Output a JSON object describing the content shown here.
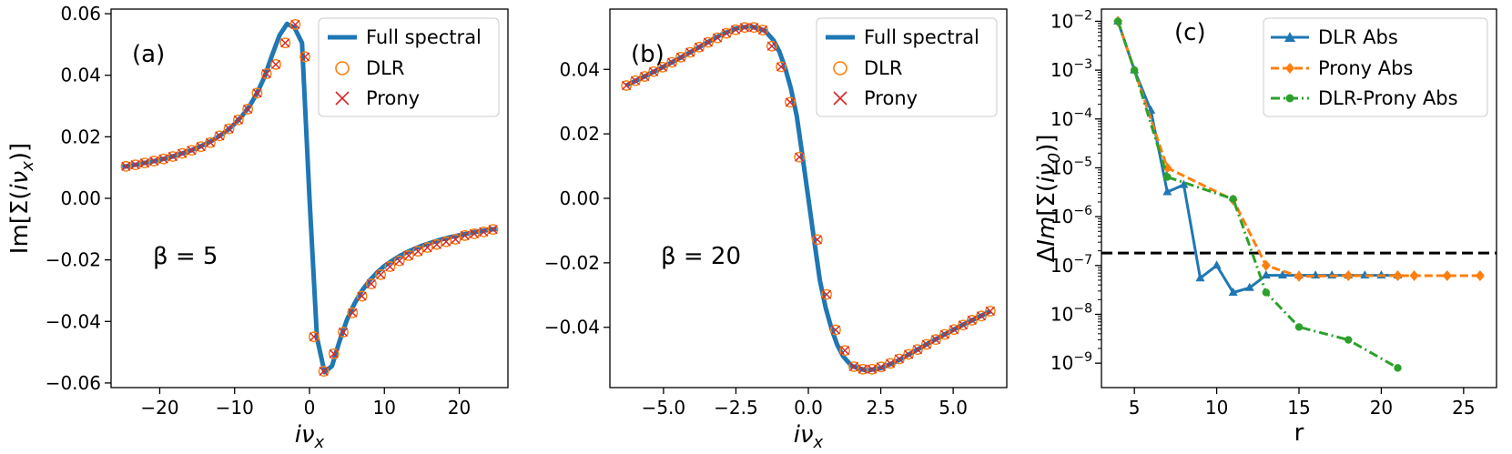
{
  "chart_data": [
    {
      "type": "line",
      "panel": "(a)",
      "annotation": "β = 5",
      "xlabel": "iν_x",
      "ylabel": "Im[Σ(iν_x)]",
      "xlim": [
        -26.5,
        26.5
      ],
      "ylim": [
        -0.0615,
        0.0615
      ],
      "xticks": [
        -20,
        -10,
        0,
        10,
        20
      ],
      "xtick_labels": [
        "−20",
        "−10",
        "0",
        "10",
        "20"
      ],
      "yticks": [
        -0.06,
        -0.04,
        -0.02,
        0.0,
        0.02,
        0.04,
        0.06
      ],
      "ytick_labels": [
        "−0.06",
        "−0.04",
        "−0.02",
        "0.00",
        "0.02",
        "0.04",
        "0.06"
      ],
      "legend_position": "top-right",
      "series": [
        {
          "name": "Full spectral",
          "style": "line",
          "color": "#1f77b4",
          "x": [
            -25,
            -24,
            -23,
            -22,
            -21,
            -20,
            -19,
            -18,
            -17,
            -16,
            -15,
            -14,
            -13,
            -12,
            -11,
            -10,
            -9,
            -8,
            -7,
            -6,
            -5,
            -4,
            -3,
            -2,
            -1,
            0,
            1,
            2,
            3,
            4,
            5,
            6,
            7,
            8,
            9,
            10,
            11,
            12,
            13,
            14,
            15,
            16,
            17,
            18,
            19,
            20,
            21,
            22,
            23,
            24,
            25
          ],
          "y": [
            0.0102,
            0.0106,
            0.011,
            0.0115,
            0.012,
            0.0125,
            0.0131,
            0.0138,
            0.0146,
            0.0154,
            0.0164,
            0.0175,
            0.0188,
            0.0203,
            0.022,
            0.0242,
            0.0268,
            0.03,
            0.0342,
            0.0395,
            0.0465,
            0.053,
            0.0567,
            0.0555,
            0.0505,
            0.0,
            -0.0453,
            -0.0565,
            -0.0545,
            -0.0465,
            -0.0395,
            -0.0342,
            -0.03,
            -0.0268,
            -0.0242,
            -0.022,
            -0.0203,
            -0.0188,
            -0.0175,
            -0.0164,
            -0.0154,
            -0.0146,
            -0.0138,
            -0.0131,
            -0.0125,
            -0.012,
            -0.0115,
            -0.011,
            -0.0106,
            -0.0102,
            -0.0099
          ]
        },
        {
          "name": "DLR",
          "style": "circle",
          "color": "#ff7f0e",
          "x": [
            -24.5,
            -23.25,
            -22.0,
            -20.75,
            -19.5,
            -18.25,
            -17.0,
            -15.75,
            -14.5,
            -13.25,
            -12.0,
            -10.75,
            -9.5,
            -8.25,
            -7.0,
            -5.75,
            -4.5,
            -3.25,
            -1.9,
            -0.6,
            0.6,
            1.9,
            3.25,
            4.5,
            5.75,
            7.0,
            8.25,
            9.5,
            10.75,
            12.0,
            13.25,
            14.5,
            15.75,
            17.0,
            18.25,
            19.5,
            20.75,
            22.0,
            23.25,
            24.5
          ],
          "y": [
            0.0104,
            0.0109,
            0.0115,
            0.0121,
            0.0128,
            0.0136,
            0.0146,
            0.0156,
            0.0168,
            0.0181,
            0.0203,
            0.0226,
            0.0255,
            0.029,
            0.0342,
            0.0405,
            0.0435,
            0.0505,
            0.0565,
            0.046,
            -0.045,
            -0.0562,
            -0.0505,
            -0.0435,
            -0.0372,
            -0.0318,
            -0.0278,
            -0.0248,
            -0.0222,
            -0.0203,
            -0.0186,
            -0.0172,
            -0.016,
            -0.015,
            -0.0141,
            -0.0133,
            -0.0121,
            -0.0115,
            -0.0109,
            -0.0101
          ]
        },
        {
          "name": "Prony",
          "style": "x",
          "color": "#d62728",
          "x": [
            -24.5,
            -23.25,
            -22.0,
            -20.75,
            -19.5,
            -18.25,
            -17.0,
            -15.75,
            -14.5,
            -13.25,
            -12.0,
            -10.75,
            -9.5,
            -8.25,
            -7.0,
            -5.75,
            -4.5,
            -3.25,
            -1.9,
            -0.6,
            0.6,
            1.9,
            3.25,
            4.5,
            5.75,
            7.0,
            8.25,
            9.5,
            10.75,
            12.0,
            13.25,
            14.5,
            15.75,
            17.0,
            18.25,
            19.5,
            20.75,
            22.0,
            23.25,
            24.5
          ],
          "y": [
            0.0104,
            0.0109,
            0.0115,
            0.0121,
            0.0128,
            0.0136,
            0.0146,
            0.0156,
            0.0168,
            0.0181,
            0.0203,
            0.0226,
            0.0255,
            0.029,
            0.0342,
            0.0405,
            0.0435,
            0.0505,
            0.0565,
            0.046,
            -0.045,
            -0.0562,
            -0.0505,
            -0.0435,
            -0.0372,
            -0.0318,
            -0.0278,
            -0.0248,
            -0.0222,
            -0.0203,
            -0.0186,
            -0.0172,
            -0.016,
            -0.015,
            -0.0141,
            -0.0133,
            -0.0121,
            -0.0115,
            -0.0109,
            -0.0101
          ]
        }
      ]
    },
    {
      "type": "line",
      "panel": "(b)",
      "annotation": "β = 20",
      "xlabel": "iν_x",
      "ylabel": "",
      "xlim": [
        -6.85,
        6.85
      ],
      "ylim": [
        -0.0587,
        0.0587
      ],
      "xticks": [
        -5,
        -2.5,
        0,
        2.5,
        5
      ],
      "xtick_labels": [
        "−5.0",
        "−2.5",
        "0.0",
        "2.5",
        "5.0"
      ],
      "yticks": [
        -0.04,
        -0.02,
        0.0,
        0.02,
        0.04
      ],
      "ytick_labels": [
        "−0.04",
        "−0.02",
        "0.00",
        "0.02",
        "0.04"
      ],
      "legend_position": "top-right",
      "series": [
        {
          "name": "Full spectral",
          "style": "line",
          "color": "#1f77b4",
          "x": [
            -6.28,
            -6.0,
            -5.5,
            -5.0,
            -4.5,
            -4.0,
            -3.5,
            -3.0,
            -2.5,
            -2.0,
            -1.5,
            -1.2,
            -1.0,
            -0.8,
            -0.6,
            -0.4,
            -0.2,
            0.0,
            0.2,
            0.4,
            0.6,
            0.8,
            1.0,
            1.2,
            1.5,
            2.0,
            2.5,
            3.0,
            3.5,
            4.0,
            4.5,
            5.0,
            5.5,
            6.0,
            6.28
          ],
          "y": [
            0.035,
            0.0363,
            0.0385,
            0.0408,
            0.0432,
            0.0457,
            0.0483,
            0.0508,
            0.0527,
            0.0534,
            0.052,
            0.049,
            0.0455,
            0.0405,
            0.034,
            0.0255,
            0.013,
            0.0,
            -0.013,
            -0.0255,
            -0.034,
            -0.0405,
            -0.0455,
            -0.049,
            -0.052,
            -0.0534,
            -0.0527,
            -0.0508,
            -0.0483,
            -0.0457,
            -0.0432,
            -0.0408,
            -0.0385,
            -0.0363,
            -0.035
          ]
        },
        {
          "name": "DLR",
          "style": "circle",
          "color": "#ff7f0e",
          "x": [
            -6.28,
            -5.97,
            -5.65,
            -5.34,
            -5.03,
            -4.71,
            -4.4,
            -4.08,
            -3.77,
            -3.46,
            -3.14,
            -2.83,
            -2.51,
            -2.2,
            -1.88,
            -1.57,
            -1.26,
            -0.94,
            -0.63,
            -0.31,
            0.31,
            0.63,
            0.94,
            1.26,
            1.57,
            1.88,
            2.2,
            2.51,
            2.83,
            3.14,
            3.46,
            3.77,
            4.08,
            4.4,
            4.71,
            5.03,
            5.34,
            5.65,
            5.97,
            6.28
          ],
          "y": [
            0.035,
            0.0365,
            0.0378,
            0.0393,
            0.0407,
            0.0422,
            0.0438,
            0.0453,
            0.0469,
            0.0484,
            0.0498,
            0.0512,
            0.0523,
            0.053,
            0.053,
            0.0522,
            0.0472,
            0.0408,
            0.0298,
            0.0128,
            -0.0128,
            -0.0298,
            -0.0408,
            -0.0472,
            -0.0522,
            -0.053,
            -0.053,
            -0.0523,
            -0.0512,
            -0.0498,
            -0.0484,
            -0.0469,
            -0.0453,
            -0.0438,
            -0.0422,
            -0.0407,
            -0.0393,
            -0.0378,
            -0.0365,
            -0.035
          ]
        },
        {
          "name": "Prony",
          "style": "x",
          "color": "#d62728",
          "x": [
            -6.28,
            -5.97,
            -5.65,
            -5.34,
            -5.03,
            -4.71,
            -4.4,
            -4.08,
            -3.77,
            -3.46,
            -3.14,
            -2.83,
            -2.51,
            -2.2,
            -1.88,
            -1.57,
            -1.26,
            -0.94,
            -0.63,
            -0.31,
            0.31,
            0.63,
            0.94,
            1.26,
            1.57,
            1.88,
            2.2,
            2.51,
            2.83,
            3.14,
            3.46,
            3.77,
            4.08,
            4.4,
            4.71,
            5.03,
            5.34,
            5.65,
            5.97,
            6.28
          ],
          "y": [
            0.035,
            0.0365,
            0.0378,
            0.0393,
            0.0407,
            0.0422,
            0.0438,
            0.0453,
            0.0469,
            0.0484,
            0.0498,
            0.0512,
            0.0523,
            0.053,
            0.053,
            0.0522,
            0.0472,
            0.0408,
            0.0298,
            0.0128,
            -0.0128,
            -0.0298,
            -0.0408,
            -0.0472,
            -0.0522,
            -0.053,
            -0.053,
            -0.0523,
            -0.0512,
            -0.0498,
            -0.0484,
            -0.0469,
            -0.0453,
            -0.0438,
            -0.0422,
            -0.0407,
            -0.0393,
            -0.0378,
            -0.0365,
            -0.035
          ]
        }
      ]
    },
    {
      "type": "line",
      "panel": "(c)",
      "xlabel": "r",
      "ylabel": "ΔIm[Σ(iν_0)]",
      "yscale": "log",
      "xlim": [
        3.0,
        27.0
      ],
      "ylim_log10": [
        -9.5,
        -1.75
      ],
      "xticks": [
        5,
        10,
        15,
        20,
        25
      ],
      "xtick_labels": [
        "5",
        "10",
        "15",
        "20",
        "25"
      ],
      "ytick_exponents": [
        -9,
        -8,
        -7,
        -6,
        -5,
        -4,
        -3,
        -2
      ],
      "ytick_base": "10",
      "threshold_line": {
        "y": 1.8e-07,
        "style": "dashed",
        "color": "#000000"
      },
      "legend_position": "top-right",
      "series": [
        {
          "name": "DLR Abs",
          "style": "solid",
          "marker": "triangle",
          "color": "#1f77b4",
          "x": [
            4,
            5,
            6,
            7,
            8,
            9,
            10,
            11,
            12,
            13,
            14,
            15,
            16,
            17,
            18,
            19,
            20,
            21
          ],
          "y": [
            0.01,
            0.001,
            0.00015,
            3.2e-06,
            4.5e-06,
            5.5e-08,
            1e-07,
            2.8e-08,
            3.5e-08,
            6.3e-08,
            6.3e-08,
            6.3e-08,
            6.3e-08,
            6.3e-08,
            6.3e-08,
            6.3e-08,
            6.3e-08,
            6.3e-08
          ]
        },
        {
          "name": "Prony Abs",
          "style": "dashed",
          "marker": "diamond",
          "color": "#ff7f0e",
          "x": [
            4,
            7,
            11,
            13,
            15,
            18,
            21,
            22,
            24,
            26
          ],
          "y": [
            0.01,
            1e-05,
            2.2e-06,
            1e-07,
            6e-08,
            6.2e-08,
            6.2e-08,
            6.2e-08,
            6.2e-08,
            6.2e-08
          ]
        },
        {
          "name": "DLR-Prony Abs",
          "style": "dashdot",
          "marker": "circle",
          "color": "#2ca02c",
          "x": [
            4,
            5,
            7,
            11,
            13,
            15,
            18,
            21
          ],
          "y": [
            0.01,
            0.001,
            6.5e-06,
            2.3e-06,
            2.8e-08,
            5.5e-09,
            3e-09,
            8e-10
          ]
        }
      ]
    }
  ]
}
